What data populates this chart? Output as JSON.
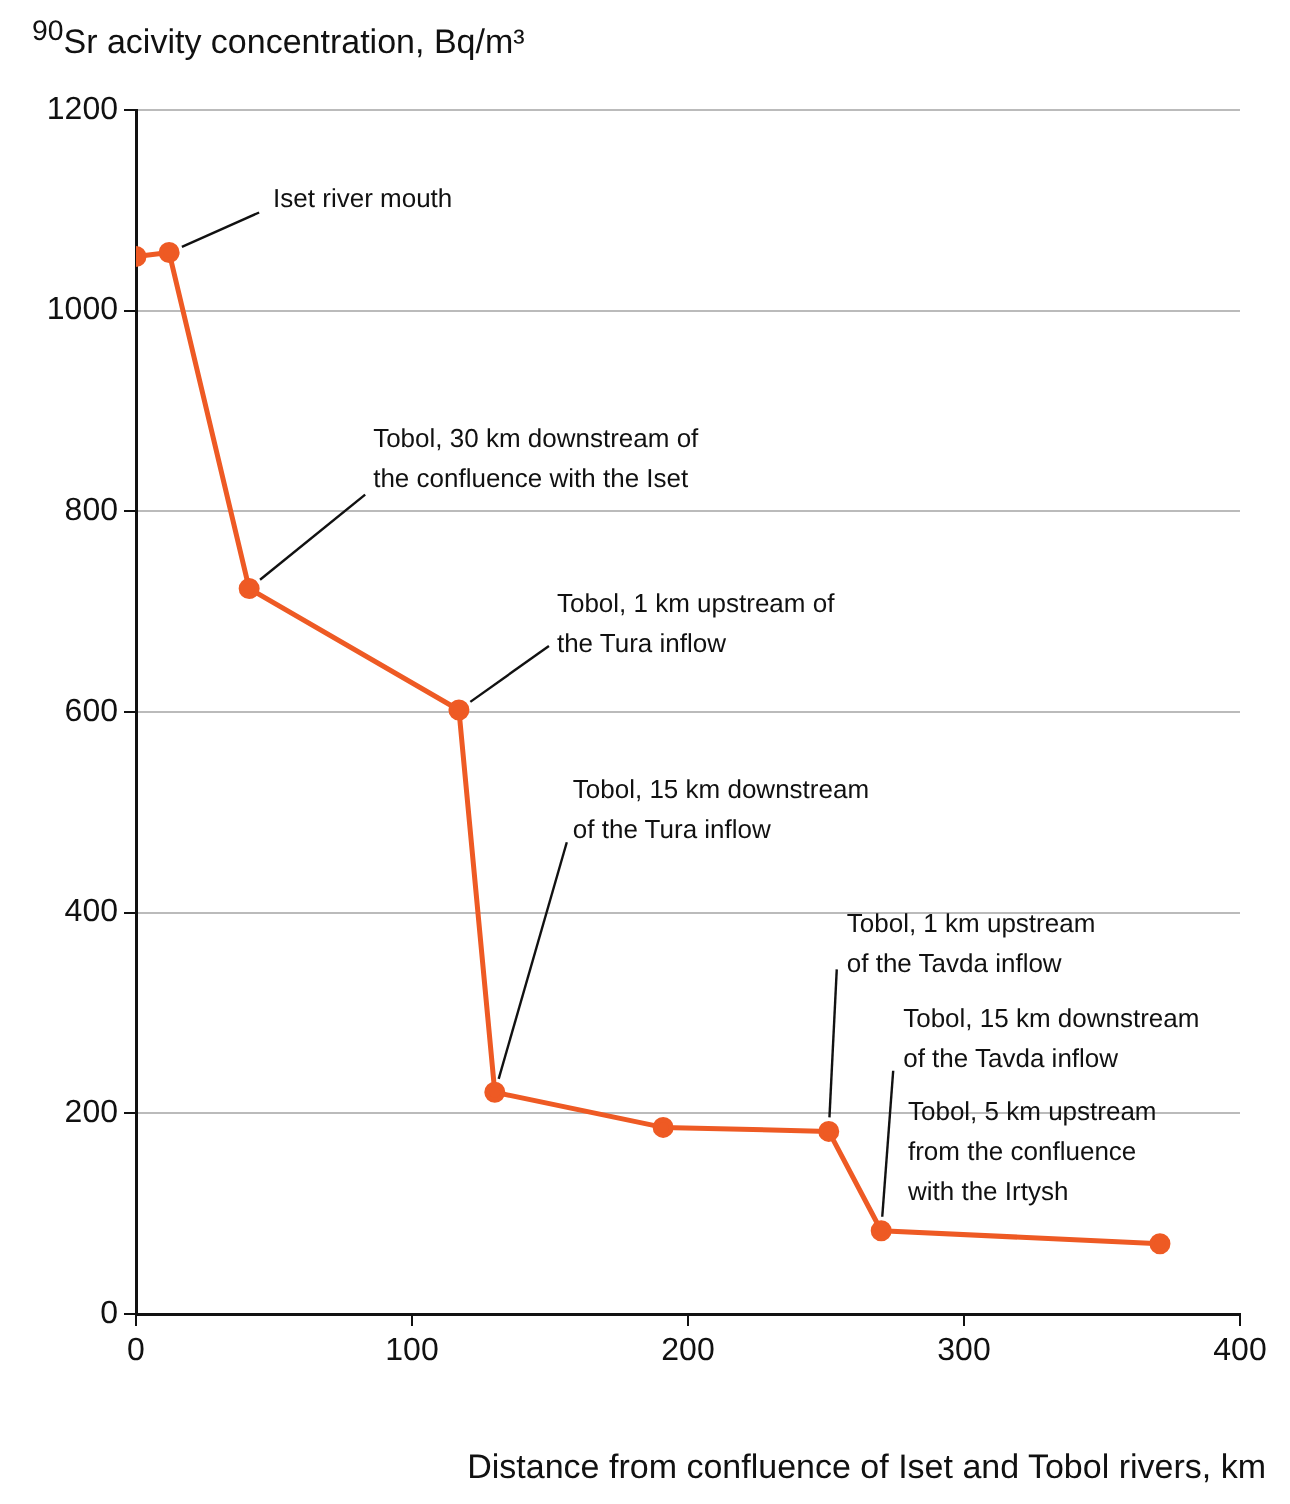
{
  "chart_data": {
    "type": "line",
    "ylabel": "$^{90}$Sr acivity concentration, Bq/m³",
    "xlabel": "Distance from confluence of Iset and Tobol rivers, km",
    "x": [
      0,
      12,
      41,
      117,
      130,
      191,
      251,
      270,
      371
    ],
    "series": [
      {
        "color": "#ee5a24",
        "values": [
          1054,
          1058,
          723,
          602,
          221,
          186,
          182,
          83,
          70
        ]
      }
    ],
    "xlim": [
      0,
      400
    ],
    "xticks": [
      0,
      100,
      200,
      300,
      400
    ],
    "ylim": [
      0,
      1200
    ],
    "yticks": [
      0,
      200,
      400,
      600,
      800,
      1000,
      1200
    ],
    "grid": "y",
    "legend": false,
    "marker": "circle",
    "line_style": "solid",
    "annotations": [
      {
        "text": "Iset river mouth",
        "x": 12,
        "y": 1058
      },
      {
        "text": "Tobol, 30 km downstream of the confluence with the Iset",
        "x": 41,
        "y": 723
      },
      {
        "text": "Tobol, 1 km upstream of the Tura inflow",
        "x": 117,
        "y": 602
      },
      {
        "text": "Tobol, 15 km downstream of the Tura inflow",
        "x": 130,
        "y": 221
      },
      {
        "text": "Tobol, 1 km upstream of the Tavda inflow",
        "x": 251,
        "y": 182
      },
      {
        "text": "Tobol, 15 km downstream of the Tavda inflow",
        "x": 270,
        "y": 83
      },
      {
        "text": "Tobol, 5 km upstream from the confluence with the Irtysh",
        "x": 371,
        "y": 70
      }
    ]
  }
}
